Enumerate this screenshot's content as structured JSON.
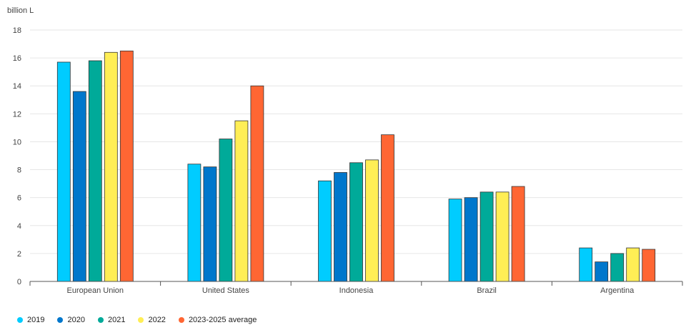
{
  "chart_data": {
    "type": "bar",
    "unit_label": "billion L",
    "categories": [
      "European Union",
      "United States",
      "Indonesia",
      "Brazil",
      "Argentina"
    ],
    "series": [
      {
        "name": "2019",
        "color": "#00CCFF",
        "values": [
          15.7,
          8.4,
          7.2,
          5.9,
          2.4
        ]
      },
      {
        "name": "2020",
        "color": "#0077CC",
        "values": [
          13.6,
          8.2,
          7.8,
          6.0,
          1.4
        ]
      },
      {
        "name": "2021",
        "color": "#00AA99",
        "values": [
          15.8,
          10.2,
          8.5,
          6.4,
          2.0
        ]
      },
      {
        "name": "2022",
        "color": "#FFEE55",
        "values": [
          16.4,
          11.5,
          8.7,
          6.4,
          2.4
        ]
      },
      {
        "name": "2023-2025 average",
        "color": "#FF6633",
        "values": [
          16.5,
          14.0,
          10.5,
          6.8,
          2.3
        ]
      }
    ],
    "ylim": [
      0,
      18
    ],
    "yticks": [
      0,
      2,
      4,
      6,
      8,
      10,
      12,
      14,
      16,
      18
    ],
    "grid": true,
    "legend_position": "bottom-left"
  }
}
